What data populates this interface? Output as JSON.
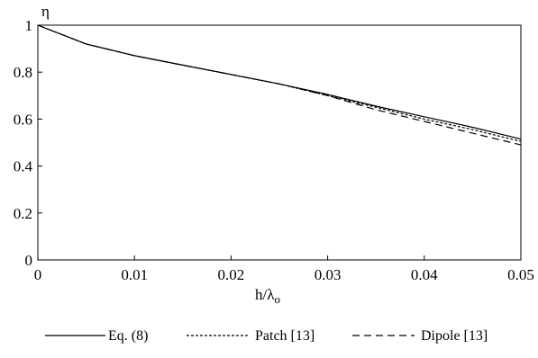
{
  "chart_data": {
    "type": "line",
    "ylabel": "η",
    "xlabel_main": "h/λ",
    "xlabel_sub": "o",
    "xlim": [
      0,
      0.05
    ],
    "ylim": [
      0,
      1
    ],
    "grid": false,
    "legend_position": "bottom",
    "x_ticks": [
      "0",
      "0.01",
      "0.02",
      "0.03",
      "0.04",
      "0.05"
    ],
    "y_ticks": [
      "0",
      "0.2",
      "0.4",
      "0.6",
      "0.8",
      "1"
    ],
    "series": [
      {
        "name": "Eq. (8)",
        "style": "solid",
        "x": [
          0,
          0.005,
          0.01,
          0.015,
          0.02,
          0.025,
          0.03,
          0.035,
          0.04,
          0.045,
          0.05
        ],
        "y": [
          1.0,
          0.92,
          0.87,
          0.83,
          0.79,
          0.75,
          0.705,
          0.655,
          0.61,
          0.565,
          0.515
        ]
      },
      {
        "name": "Patch [13]",
        "style": "dotted",
        "x": [
          0,
          0.005,
          0.01,
          0.015,
          0.02,
          0.025,
          0.03,
          0.035,
          0.04,
          0.045,
          0.05
        ],
        "y": [
          1.0,
          0.92,
          0.87,
          0.83,
          0.79,
          0.75,
          0.7,
          0.65,
          0.6,
          0.555,
          0.505
        ]
      },
      {
        "name": "Dipole [13]",
        "style": "dashed",
        "x": [
          0,
          0.005,
          0.01,
          0.015,
          0.02,
          0.025,
          0.03,
          0.035,
          0.04,
          0.045,
          0.05
        ],
        "y": [
          1.0,
          0.92,
          0.87,
          0.83,
          0.79,
          0.75,
          0.7,
          0.64,
          0.59,
          0.54,
          0.49
        ]
      }
    ]
  },
  "colors": {
    "line": "#000000",
    "background": "#ffffff"
  }
}
